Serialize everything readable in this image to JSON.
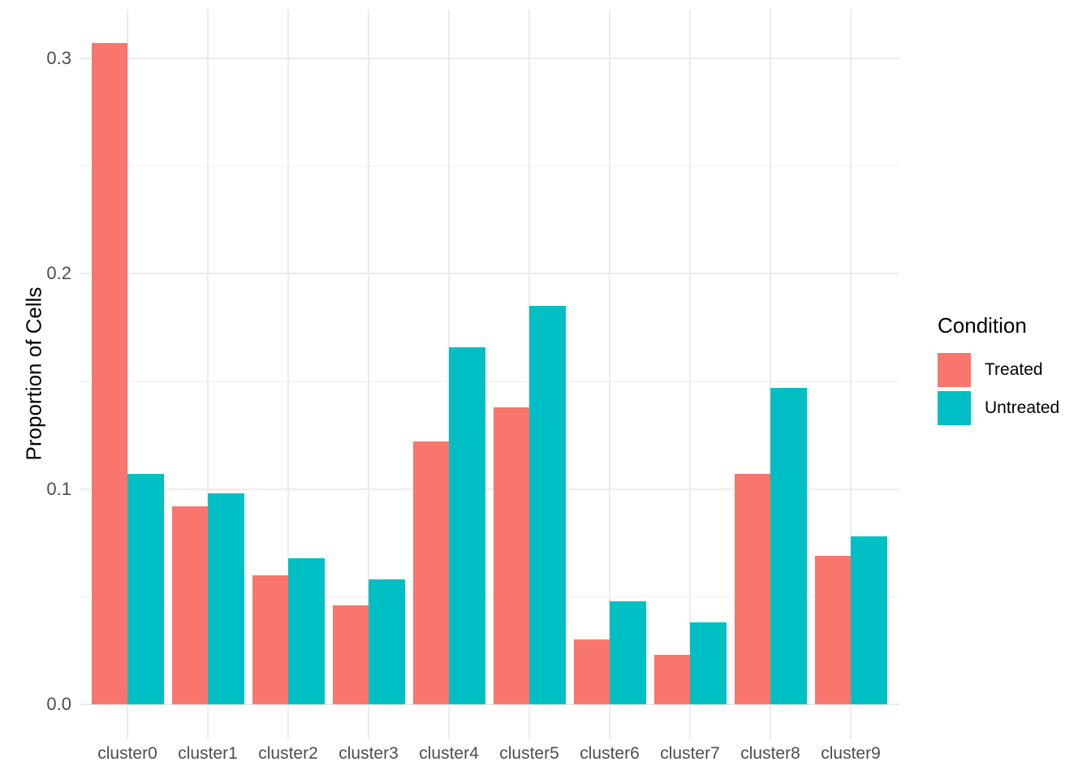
{
  "chart_data": {
    "type": "bar",
    "title": "",
    "xlabel": "",
    "ylabel": "Proportion of Cells",
    "categories": [
      "cluster0",
      "cluster1",
      "cluster2",
      "cluster3",
      "cluster4",
      "cluster5",
      "cluster6",
      "cluster7",
      "cluster8",
      "cluster9"
    ],
    "series": [
      {
        "name": "Treated",
        "color": "#F8766D",
        "values": [
          0.307,
          0.092,
          0.06,
          0.046,
          0.122,
          0.138,
          0.03,
          0.023,
          0.107,
          0.069
        ]
      },
      {
        "name": "Untreated",
        "color": "#00BFC4",
        "values": [
          0.107,
          0.098,
          0.068,
          0.058,
          0.166,
          0.185,
          0.048,
          0.038,
          0.147,
          0.078
        ]
      }
    ],
    "y_ticks": [
      0.0,
      0.1,
      0.2,
      0.3
    ],
    "y_tick_labels": [
      "0.0",
      "0.1",
      "0.2",
      "0.3"
    ],
    "y_minor_ticks": [
      0.05,
      0.15,
      0.25
    ],
    "ylim": [
      -0.01623,
      0.32264
    ],
    "grid": true,
    "legend": {
      "title": "Condition",
      "position": "right",
      "entries": [
        {
          "label": "Treated",
          "color": "#F8766D"
        },
        {
          "label": "Untreated",
          "color": "#00BFC4"
        }
      ]
    },
    "colors": {
      "background": "#ffffff",
      "gridline_major": "#ebebeb",
      "gridline_minor": "#efefef",
      "tick_label": "#4d4d4d",
      "title_text": "#000000"
    }
  }
}
